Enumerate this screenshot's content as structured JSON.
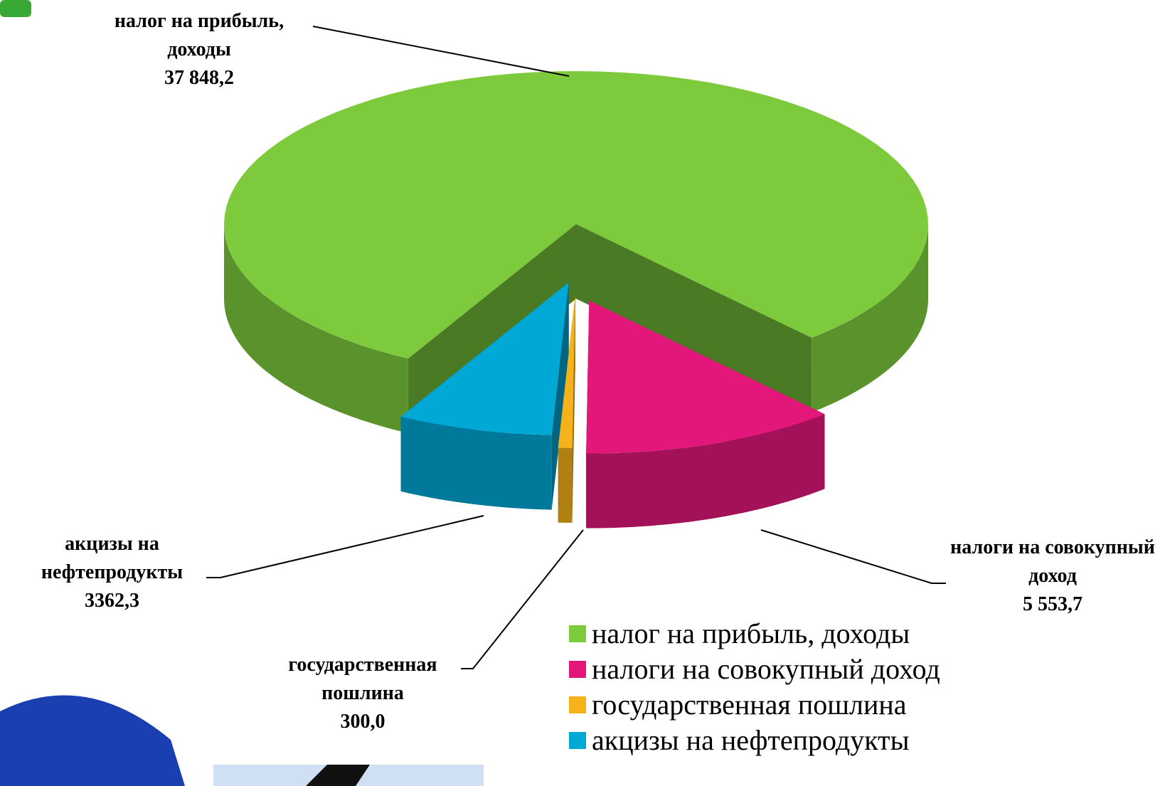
{
  "chart_data": {
    "type": "pie",
    "categories": [
      "налог на прибыль, доходы",
      "налоги на совокупный доход",
      "государственная пошлина",
      "акцизы на нефтепродукты"
    ],
    "values": [
      37848.2,
      5553.7,
      300.0,
      3362.3
    ],
    "value_labels": [
      "37 848,2",
      "5 553,7",
      "300,0",
      "3362,3"
    ],
    "colors": [
      "#7dcb3c",
      "#e3177a",
      "#f5b21b",
      "#00a8d6"
    ],
    "legend": "bottom-right"
  }
}
